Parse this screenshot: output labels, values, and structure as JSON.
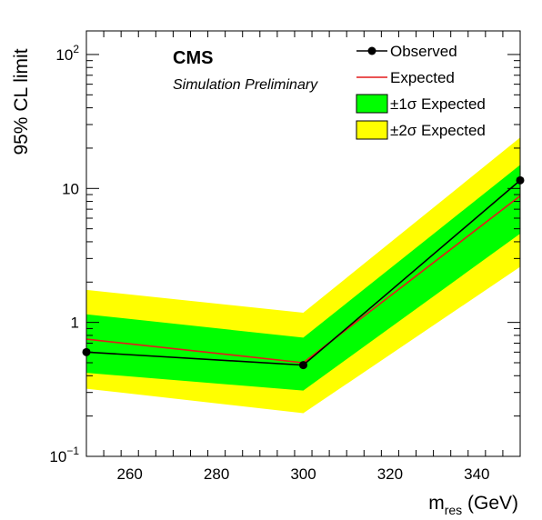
{
  "chart_data": {
    "type": "line",
    "title": "CMS",
    "subtitle": "Simulation Preliminary",
    "xlabel_main": "m",
    "xlabel_sub": "res",
    "xlabel_unit": " (GeV)",
    "ylabel": "95% CL limit",
    "xlim": [
      250,
      350
    ],
    "ylim": [
      0.1,
      150
    ],
    "yscale": "log",
    "x_ticks": [
      260,
      280,
      300,
      320,
      340
    ],
    "x_tick_labels": [
      "260",
      "280",
      "300",
      "320",
      "340"
    ],
    "y_ticks": [
      {
        "value": 0.1,
        "base": "10",
        "exp": "−1"
      },
      {
        "value": 1,
        "base": "1",
        "exp": ""
      },
      {
        "value": 10,
        "base": "10",
        "exp": ""
      },
      {
        "value": 100,
        "base": "10",
        "exp": "2"
      }
    ],
    "legend_position": "top-right",
    "legend": {
      "observed": "Observed",
      "expected": "Expected",
      "one_sigma": "±1σ Expected",
      "two_sigma": "±2σ Expected"
    },
    "x": [
      250,
      300,
      350
    ],
    "series": [
      {
        "name": "Observed",
        "values": [
          0.6,
          0.48,
          11.5
        ],
        "color": "#000000"
      },
      {
        "name": "Expected",
        "values": [
          0.75,
          0.5,
          8.8
        ],
        "color": "#e31a1c"
      }
    ],
    "bands": [
      {
        "name": "±2σ Expected",
        "lower": [
          0.32,
          0.21,
          2.6
        ],
        "upper": [
          1.75,
          1.18,
          24.0
        ],
        "color": "#ffff00"
      },
      {
        "name": "±1σ Expected",
        "lower": [
          0.42,
          0.31,
          4.6
        ],
        "upper": [
          1.15,
          0.77,
          15.0
        ],
        "color": "#00ff00"
      }
    ]
  }
}
